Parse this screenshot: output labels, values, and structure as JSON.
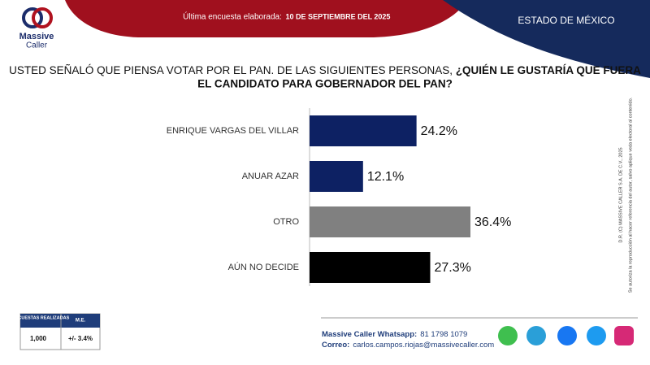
{
  "header": {
    "survey_label": "Última encuesta elaborada:",
    "survey_date": "10 DE SEPTIEMBRE DEL 2025",
    "region": "ESTADO DE MÉXICO",
    "logo": [
      "Massive",
      "Caller"
    ]
  },
  "chart_data": {
    "type": "bar",
    "orientation": "horizontal",
    "title": [
      "USTED SEÑALÓ QUE PIENSA VOTAR POR EL PAN.  DE LAS SIGUIENTES PERSONAS, ",
      "¿QUIÉN LE GUSTARÍA QUE FUERA",
      "EL CANDIDATO PARA GOBERNADOR DEL PAN?"
    ],
    "categories": [
      "ENRIQUE VARGAS DEL VILLAR",
      "ANUAR AZAR",
      "OTRO",
      "AÚN NO DECIDE"
    ],
    "values": [
      24.2,
      12.1,
      36.4,
      27.3
    ],
    "value_labels": [
      "24.2%",
      "12.1%",
      "36.4%",
      "27.3%"
    ],
    "colors": [
      "#0d2163",
      "#0d2163",
      "#808080",
      "#000000"
    ]
  },
  "side_note": [
    "D.R. (C) MASSIVE CALLER S.A. DE C.V., 2025",
    "Se autoriza la reproducción al hacer referencia del autor, salvo aplique veda electoral al contenido."
  ],
  "table": {
    "headers": [
      "ENCUESTAS REALIZADAS",
      "M.E."
    ],
    "rows": [
      [
        "1,000",
        "+/- 3.4%"
      ]
    ]
  },
  "footer": {
    "whatsapp_label": "Massive Caller Whatsapp:",
    "whatsapp": "81 1798 1079",
    "email_label": "Correo:",
    "email": "carlos.campos.riojas@massivecaller.com"
  }
}
